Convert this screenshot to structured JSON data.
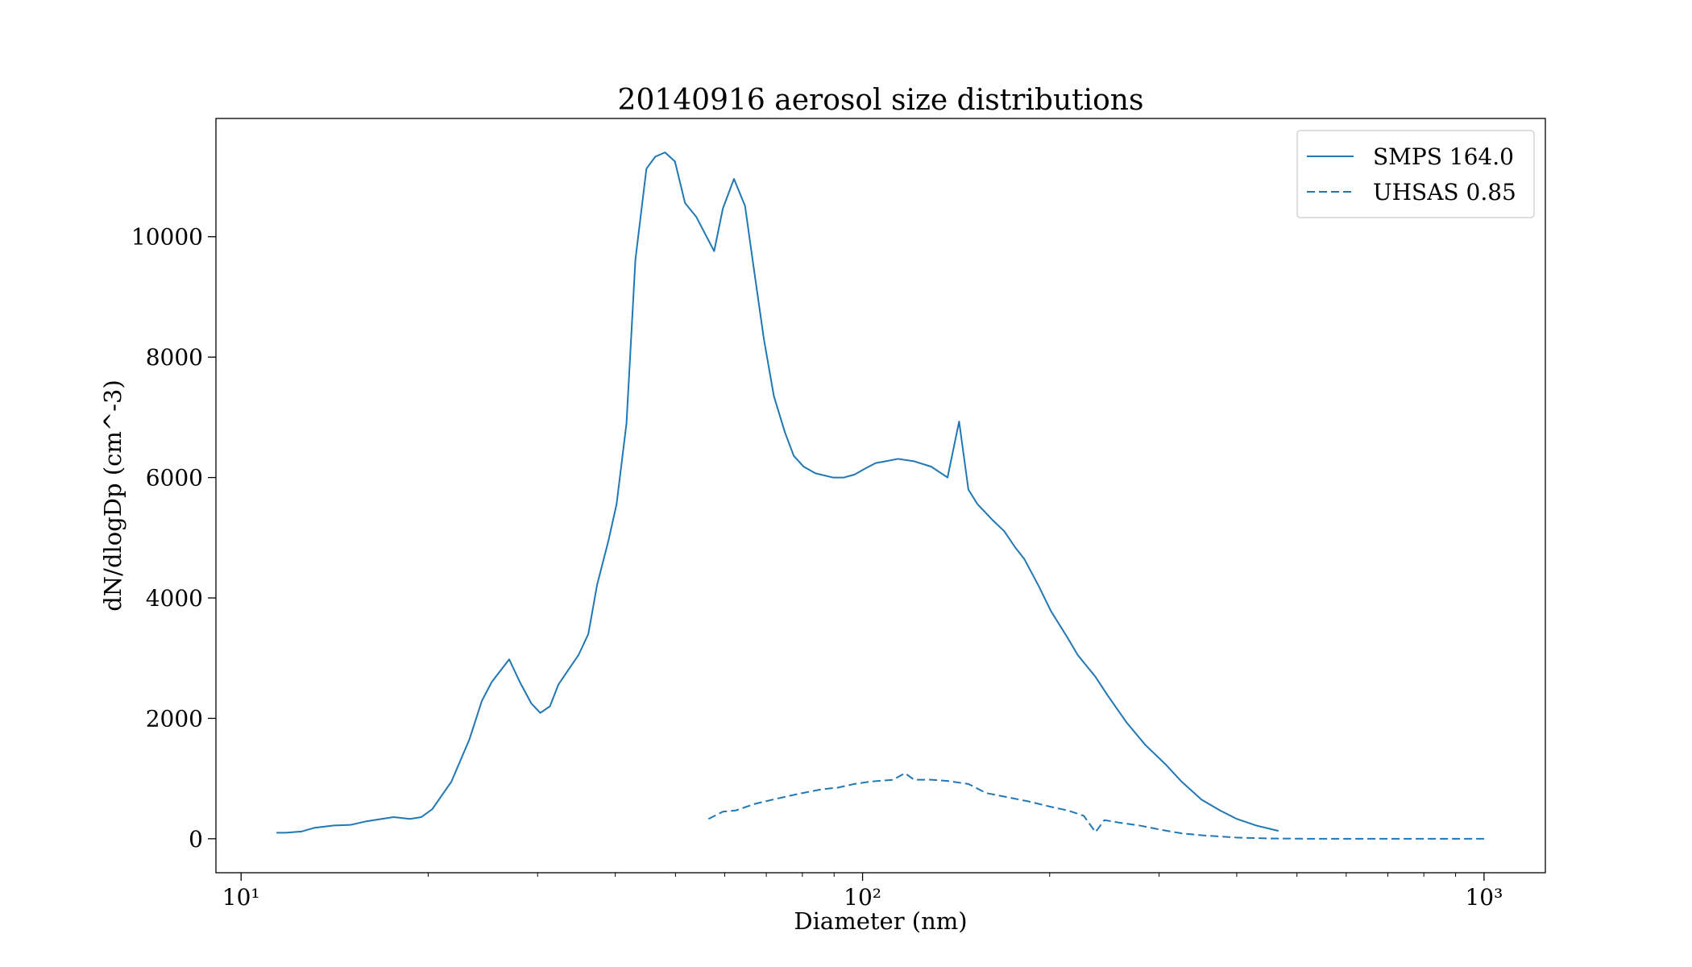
{
  "chart_data": {
    "type": "line",
    "title": "20140916 aerosol size distributions",
    "xlabel": "Diameter (nm)",
    "ylabel": "dN/dlogDp (cm^-3)",
    "xscale": "log",
    "xlim": [
      9.11,
      1255
    ],
    "ylim": [
      -564,
      11964
    ],
    "xticks": [
      {
        "value": 10,
        "label": "10¹"
      },
      {
        "value": 100,
        "label": "10²"
      },
      {
        "value": 1000,
        "label": "10³"
      }
    ],
    "xminorticks": [
      20,
      30,
      40,
      50,
      60,
      70,
      80,
      90,
      200,
      300,
      400,
      500,
      600,
      700,
      800,
      900
    ],
    "yticks": [
      0,
      2000,
      4000,
      6000,
      8000,
      10000
    ],
    "grid": false,
    "legend": "upper right",
    "series": [
      {
        "name": "SMPS 164.0",
        "color": "#1f77b4",
        "style": "solid",
        "x": [
          11.4,
          11.8,
          12.5,
          13.1,
          14.1,
          15.0,
          15.9,
          17.6,
          18.7,
          19.5,
          20.3,
          21.8,
          23.3,
          24.4,
          25.3,
          26.0,
          27.0,
          28.1,
          29.3,
          30.3,
          31.4,
          32.4,
          33.8,
          34.9,
          36.2,
          37.4,
          39.0,
          40.2,
          41.7,
          43.1,
          44.9,
          46.4,
          48.1,
          49.9,
          51.8,
          54.0,
          57.7,
          59.6,
          62.1,
          64.7,
          66.8,
          69.4,
          72.0,
          75.0,
          77.5,
          80.4,
          84.0,
          89.6,
          93.3,
          97.1,
          101,
          105,
          109,
          114,
          121,
          129,
          137,
          143,
          148,
          153,
          162,
          169,
          176,
          182,
          192,
          201,
          214,
          222,
          237,
          248,
          266,
          285,
          307,
          326,
          351,
          376,
          400,
          430,
          467
        ],
        "values": [
          100,
          100,
          120,
          180,
          220,
          230,
          290,
          360,
          330,
          360,
          490,
          950,
          1650,
          2290,
          2600,
          2760,
          2980,
          2600,
          2250,
          2090,
          2200,
          2560,
          2840,
          3050,
          3400,
          4220,
          4950,
          5560,
          6900,
          9620,
          11130,
          11330,
          11400,
          11250,
          10560,
          10330,
          9760,
          10470,
          10960,
          10510,
          9490,
          8290,
          7350,
          6750,
          6360,
          6180,
          6070,
          6000,
          6000,
          6050,
          6150,
          6240,
          6270,
          6310,
          6270,
          6180,
          6000,
          6930,
          5800,
          5560,
          5290,
          5110,
          4840,
          4650,
          4200,
          3780,
          3330,
          3050,
          2690,
          2380,
          1930,
          1560,
          1240,
          950,
          650,
          470,
          330,
          220,
          130
        ]
      },
      {
        "name": "UHSAS 0.85",
        "color": "#1f77b4",
        "style": "dashed",
        "x": [
          56.5,
          59.6,
          62.5,
          67.1,
          73.1,
          79.2,
          85.8,
          91.3,
          97,
          103,
          112,
          117,
          121,
          129,
          137,
          148,
          158,
          171,
          185,
          201,
          214,
          227,
          237,
          245,
          258,
          279,
          302,
          326,
          354,
          400,
          450,
          528,
          650,
          798,
          1000
        ],
        "values": [
          330,
          450,
          470,
          580,
          670,
          750,
          820,
          850,
          910,
          950,
          980,
          1090,
          980,
          980,
          960,
          910,
          760,
          690,
          620,
          530,
          470,
          380,
          110,
          310,
          270,
          220,
          150,
          90,
          55,
          20,
          5,
          0,
          0,
          0,
          0
        ]
      }
    ]
  }
}
